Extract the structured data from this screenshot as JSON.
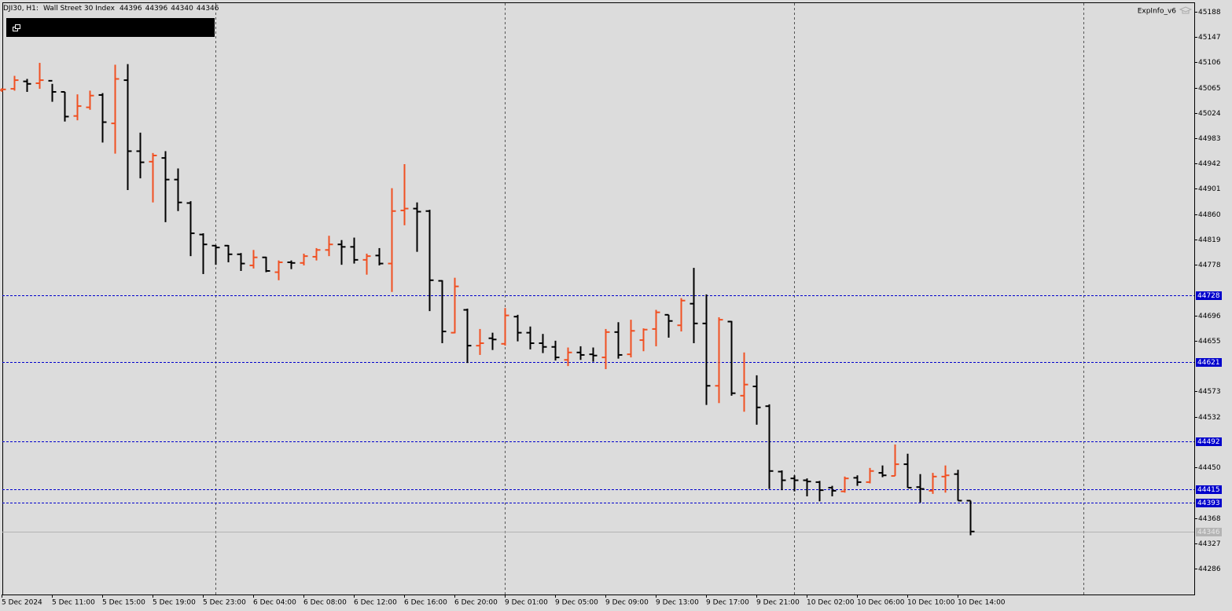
{
  "chart_data": {
    "type": "ohlc",
    "symbol_label": "DJI30, H1:",
    "instrument": "Wall Street 30 Index",
    "indicator": "ExpInfo_v6",
    "categories": [
      "5 Dec 2024",
      null,
      null,
      null,
      "5 Dec 11:00",
      null,
      null,
      null,
      "5 Dec 15:00",
      null,
      null,
      null,
      "5 Dec 19:00",
      null,
      null,
      null,
      "5 Dec 23:00",
      null,
      null,
      null,
      "6 Dec 04:00",
      null,
      null,
      null,
      "6 Dec 08:00",
      null,
      null,
      null,
      "6 Dec 12:00",
      null,
      null,
      null,
      "6 Dec 16:00",
      null,
      null,
      null,
      "6 Dec 20:00",
      null,
      null,
      null,
      "9 Dec 01:00",
      null,
      null,
      null,
      "9 Dec 05:00",
      null,
      null,
      null,
      "9 Dec 09:00",
      null,
      null,
      null,
      "9 Dec 13:00",
      null,
      null,
      null,
      "9 Dec 17:00",
      null,
      null,
      null,
      "9 Dec 21:00",
      null,
      null,
      null,
      "10 Dec 02:00",
      null,
      null,
      null,
      "10 Dec 06:00",
      null,
      null,
      null,
      "10 Dec 10:00",
      null,
      null,
      null,
      "10 Dec 14:00",
      null
    ],
    "open": [
      45061,
      45063,
      45075,
      45072,
      45076,
      45058,
      45019,
      45033,
      45053,
      45007,
      45077,
      44962,
      44945,
      44951,
      44916,
      44878,
      44827,
      44809,
      44809,
      44795,
      44777,
      44790,
      44766,
      44782,
      44781,
      44791,
      44802,
      44811,
      44807,
      44786,
      44793,
      44780,
      44866,
      44869,
      44865,
      44752,
      44668,
      44705,
      44647,
      44659,
      44650,
      44694,
      44668,
      44651,
      44645,
      44624,
      44636,
      44633,
      44628,
      44669,
      44633,
      44656,
      44674,
      44697,
      44680,
      44715,
      44683,
      44582,
      44686,
      44566,
      44581,
      44549,
      44443,
      44432,
      44429,
      44426,
      44417,
      44411,
      44433,
      44426,
      44441,
      44436,
      44455,
      44418,
      44412,
      44435,
      44439,
      44396
    ],
    "high": [
      45064,
      45084,
      45079,
      45105,
      45071,
      45058,
      45054,
      45060,
      45056,
      45102,
      45103,
      44992,
      44959,
      44962,
      44934,
      44881,
      44829,
      44810,
      44810,
      44797,
      44802,
      44791,
      44785,
      44785,
      44796,
      44805,
      44825,
      44818,
      44822,
      44796,
      44805,
      44902,
      44941,
      44879,
      44867,
      44753,
      44757,
      44707,
      44674,
      44668,
      44708,
      44697,
      44678,
      44666,
      44655,
      44644,
      44646,
      44644,
      44674,
      44685,
      44689,
      44675,
      44705,
      44697,
      44724,
      44773,
      44730,
      44693,
      44687,
      44636,
      44599,
      44552,
      44445,
      44437,
      44432,
      44428,
      44420,
      44435,
      44437,
      44449,
      44453,
      44487,
      44472,
      44439,
      44441,
      44453,
      44446,
      44396
    ],
    "low": [
      45058,
      45060,
      45058,
      45063,
      45042,
      45010,
      45012,
      45029,
      44976,
      44958,
      44899,
      44918,
      44879,
      44847,
      44865,
      44792,
      44763,
      44778,
      44782,
      44768,
      44772,
      44766,
      44753,
      44771,
      44777,
      44785,
      44792,
      44778,
      44780,
      44762,
      44777,
      44734,
      44842,
      44799,
      44703,
      44651,
      44667,
      44619,
      44632,
      44640,
      44647,
      44654,
      44641,
      44635,
      44623,
      44614,
      44624,
      44621,
      44609,
      44626,
      44628,
      44638,
      44646,
      44660,
      44670,
      44651,
      44551,
      44554,
      44566,
      44540,
      44519,
      44415,
      44413,
      44411,
      44403,
      44395,
      44403,
      44409,
      44420,
      44424,
      44434,
      44436,
      44417,
      44393,
      44407,
      44409,
      44396,
      44340
    ],
    "close": [
      45062,
      45077,
      45071,
      45077,
      45058,
      45018,
      45035,
      45052,
      45009,
      45079,
      44962,
      44944,
      44955,
      44916,
      44879,
      44829,
      44811,
      44806,
      44795,
      44780,
      44790,
      44768,
      44782,
      44781,
      44792,
      44802,
      44811,
      44807,
      44786,
      44792,
      44780,
      44865,
      44869,
      44864,
      44753,
      44670,
      44743,
      44647,
      44651,
      44657,
      44696,
      44668,
      44651,
      44645,
      44628,
      44636,
      44632,
      44631,
      44669,
      44632,
      44671,
      44673,
      44701,
      44687,
      44720,
      44683,
      44582,
      44689,
      44570,
      44584,
      44547,
      44444,
      44429,
      44429,
      44427,
      44413,
      44412,
      44432,
      44426,
      44444,
      44437,
      44455,
      44417,
      44415,
      44435,
      44437,
      44396,
      44346
    ],
    "up_color": "#f05022",
    "down_color": "#000000",
    "ylim": [
      44244,
      45203
    ],
    "yticks": [
      44286,
      44327,
      44368,
      44450,
      44532,
      44573,
      44655,
      44696,
      44778,
      44819,
      44860,
      44901,
      44942,
      44983,
      45024,
      45065,
      45106,
      45147,
      45188
    ],
    "levels": [
      44728,
      44621,
      44492,
      44415,
      44393
    ],
    "level_color": "#0000cc",
    "bid": 44346,
    "bid_color": "#b4b4b4"
  }
}
